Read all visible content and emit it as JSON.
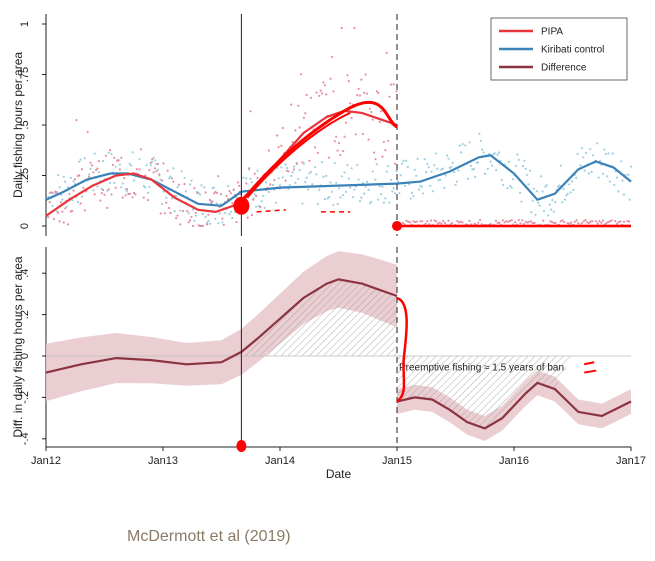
{
  "citation": "McDermott et al (2019)",
  "colors": {
    "pipa": "#e8343a",
    "kiribati": "#3b82b8",
    "difference": "#8b3440",
    "ci_band": "#e9c9cd",
    "pipa_dots": "#e58fa3",
    "kiribati_dots": "#9ccfe0",
    "annotation_ink": "#ff0000"
  },
  "chart_data": [
    {
      "type": "line",
      "panel": "top",
      "ylabel": "Daily fishing hours per area",
      "xlabel": "",
      "xlim": [
        2012,
        2017
      ],
      "ylim": [
        0,
        1
      ],
      "yticks": [
        "0",
        ".25",
        ".5",
        ".75",
        "1"
      ],
      "ytick_values": [
        0,
        0.25,
        0.5,
        0.75,
        1
      ],
      "legend": {
        "position": "top-right",
        "entries": [
          "PIPA",
          "Kiribati control",
          "Difference"
        ]
      },
      "vertical_lines": [
        {
          "x": 2013.67,
          "style": "solid"
        },
        {
          "x": 2015.0,
          "style": "dashed"
        }
      ],
      "series": [
        {
          "name": "PIPA",
          "x": [
            2012.0,
            2012.2,
            2012.4,
            2012.6,
            2012.75,
            2012.9,
            2013.1,
            2013.3,
            2013.45,
            2013.6,
            2013.67
          ],
          "values": [
            0.05,
            0.13,
            0.2,
            0.25,
            0.26,
            0.23,
            0.14,
            0.08,
            0.07,
            0.1,
            0.13
          ]
        },
        {
          "name": "PIPA",
          "x": [
            2013.67,
            2013.8,
            2014.0,
            2014.2,
            2014.4,
            2014.55,
            2014.7,
            2014.85,
            2015.0
          ],
          "values": [
            0.13,
            0.2,
            0.33,
            0.46,
            0.54,
            0.57,
            0.56,
            0.53,
            0.5
          ]
        },
        {
          "name": "PIPA",
          "x": [
            2015.0,
            2015.5,
            2016.0,
            2016.5,
            2017.0
          ],
          "values": [
            0.0,
            0.0,
            0.0,
            0.0,
            0.0
          ]
        },
        {
          "name": "Kiribati control",
          "x": [
            2012.0,
            2012.15,
            2012.35,
            2012.55,
            2012.7,
            2012.9,
            2013.1,
            2013.3,
            2013.5,
            2013.67,
            2014.0,
            2014.5,
            2015.0,
            2015.2,
            2015.45,
            2015.7,
            2015.8,
            2016.0,
            2016.2,
            2016.35,
            2016.55,
            2016.7,
            2016.85,
            2017.0
          ],
          "values": [
            0.13,
            0.17,
            0.23,
            0.26,
            0.26,
            0.23,
            0.17,
            0.11,
            0.1,
            0.17,
            0.19,
            0.2,
            0.21,
            0.22,
            0.27,
            0.34,
            0.35,
            0.26,
            0.13,
            0.16,
            0.28,
            0.32,
            0.29,
            0.22
          ]
        }
      ]
    },
    {
      "type": "line",
      "panel": "bottom",
      "ylabel": "Diff. in daily fishing hours per area",
      "xlabel": "Date",
      "xlim": [
        2012,
        2017
      ],
      "ylim": [
        -0.45,
        0.5
      ],
      "xticks": [
        "Jan12",
        "Jan13",
        "Jan14",
        "Jan15",
        "Jan16",
        "Jan17"
      ],
      "xtick_values": [
        2012,
        2013,
        2014,
        2015,
        2016,
        2017
      ],
      "yticks": [
        "-.4",
        "-.2",
        "0",
        ".2",
        ".4"
      ],
      "ytick_values": [
        -0.4,
        -0.2,
        0,
        0.2,
        0.4
      ],
      "annotation": "Preemptive fishing ≈ 1.5 years of ban",
      "series": [
        {
          "name": "Difference",
          "x": [
            2012.0,
            2012.3,
            2012.6,
            2012.9,
            2013.2,
            2013.5,
            2013.67,
            2013.8,
            2014.0,
            2014.2,
            2014.4,
            2014.5,
            2014.7,
            2014.85,
            2015.0
          ],
          "values": [
            -0.08,
            -0.04,
            -0.01,
            -0.02,
            -0.04,
            -0.03,
            0.02,
            0.08,
            0.18,
            0.28,
            0.35,
            0.37,
            0.35,
            0.32,
            0.29
          ]
        },
        {
          "name": "Difference",
          "x": [
            2015.0,
            2015.15,
            2015.3,
            2015.45,
            2015.6,
            2015.75,
            2015.9,
            2016.1,
            2016.2,
            2016.35,
            2016.55,
            2016.75,
            2017.0
          ],
          "values": [
            -0.22,
            -0.2,
            -0.21,
            -0.26,
            -0.32,
            -0.35,
            -0.3,
            -0.18,
            -0.13,
            -0.16,
            -0.27,
            -0.29,
            -0.22
          ]
        }
      ]
    }
  ]
}
